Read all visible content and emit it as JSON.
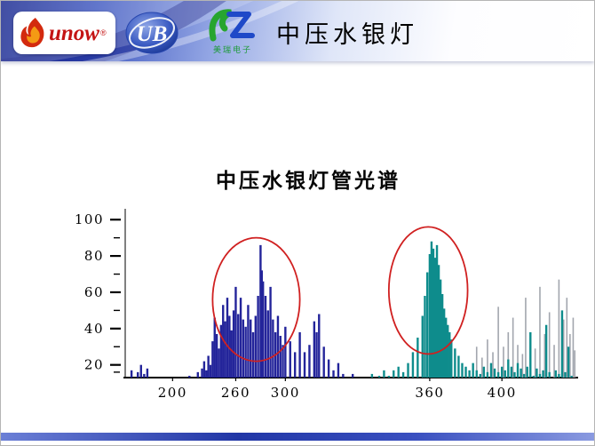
{
  "slide": {
    "title": "中压水银灯",
    "logos": {
      "sunow": {
        "text": "unow",
        "reg": "®"
      },
      "ub": {
        "text": "UB"
      },
      "meirui": {
        "caption": "美瑞电子"
      }
    }
  },
  "chart_data": {
    "type": "bar",
    "title": "中压水银灯管光谱",
    "xlabel": "",
    "ylabel": "",
    "xlim": [
      170,
      447
    ],
    "ylim": [
      13,
      105
    ],
    "x_ticks": [
      200,
      260,
      300,
      360,
      400
    ],
    "y_ticks_major": [
      20,
      40,
      60,
      80,
      100
    ],
    "y_ticks_minor": [
      16,
      30,
      50,
      70,
      90
    ],
    "grid": "off",
    "legend": "none",
    "series": [
      {
        "name": "gray-lines",
        "color": "#a2a6ae",
        "width": 1.6,
        "points": [
          [
            386,
            30
          ],
          [
            389,
            24
          ],
          [
            392,
            34
          ],
          [
            395,
            27
          ],
          [
            398,
            52
          ],
          [
            401,
            30
          ],
          [
            404,
            38
          ],
          [
            407,
            46
          ],
          [
            410,
            31
          ],
          [
            413,
            26
          ],
          [
            415,
            57
          ],
          [
            418,
            35
          ],
          [
            421,
            29
          ],
          [
            424,
            63
          ],
          [
            427,
            37
          ],
          [
            430,
            49
          ],
          [
            433,
            31
          ],
          [
            436,
            67
          ],
          [
            439,
            45
          ],
          [
            441,
            57
          ],
          [
            443,
            37
          ],
          [
            445,
            46
          ],
          [
            446,
            28
          ]
        ]
      },
      {
        "name": "uv-lines",
        "color": "#23249a",
        "width": 2.4,
        "points": [
          [
            170,
            9
          ],
          [
            172,
            13
          ],
          [
            174,
            17
          ],
          [
            176,
            12
          ],
          [
            178,
            16
          ],
          [
            180,
            20
          ],
          [
            182,
            15
          ],
          [
            184,
            18
          ],
          [
            186,
            12
          ],
          [
            188,
            9
          ],
          [
            190,
            13
          ],
          [
            192,
            10
          ],
          [
            194,
            12
          ],
          [
            196,
            9
          ],
          [
            198,
            11
          ],
          [
            200,
            10
          ],
          [
            202,
            8
          ],
          [
            204,
            11
          ],
          [
            206,
            9
          ],
          [
            208,
            12
          ],
          [
            210,
            10
          ],
          [
            212,
            8
          ],
          [
            214,
            12
          ],
          [
            216,
            14
          ],
          [
            218,
            11
          ],
          [
            220,
            13
          ],
          [
            222,
            10
          ],
          [
            224,
            16
          ],
          [
            226,
            13
          ],
          [
            228,
            18
          ],
          [
            230,
            22
          ],
          [
            232,
            17
          ],
          [
            234,
            25
          ],
          [
            236,
            20
          ],
          [
            238,
            33
          ],
          [
            240,
            46
          ],
          [
            242,
            37
          ],
          [
            244,
            29
          ],
          [
            246,
            42
          ],
          [
            248,
            53
          ],
          [
            250,
            44
          ],
          [
            252,
            57
          ],
          [
            254,
            47
          ],
          [
            256,
            39
          ],
          [
            258,
            50
          ],
          [
            260,
            63
          ],
          [
            262,
            48
          ],
          [
            264,
            57
          ],
          [
            266,
            45
          ],
          [
            268,
            41
          ],
          [
            270,
            53
          ],
          [
            272,
            45
          ],
          [
            274,
            38
          ],
          [
            276,
            47
          ],
          [
            278,
            58
          ],
          [
            280,
            86
          ],
          [
            281,
            72
          ],
          [
            282,
            66
          ],
          [
            284,
            58
          ],
          [
            286,
            50
          ],
          [
            288,
            63
          ],
          [
            290,
            45
          ],
          [
            292,
            38
          ],
          [
            294,
            47
          ],
          [
            296,
            36
          ],
          [
            298,
            31
          ],
          [
            300,
            41
          ],
          [
            302,
            33
          ],
          [
            304,
            27
          ],
          [
            306,
            38
          ],
          [
            308,
            27
          ],
          [
            310,
            31
          ],
          [
            312,
            44
          ],
          [
            313,
            38
          ],
          [
            314,
            48
          ],
          [
            316,
            30
          ],
          [
            318,
            23
          ],
          [
            320,
            17
          ],
          [
            322,
            21
          ],
          [
            324,
            15
          ],
          [
            326,
            13
          ],
          [
            328,
            15
          ],
          [
            330,
            12
          ],
          [
            332,
            10
          ]
        ]
      },
      {
        "name": "visible-lines",
        "color": "#0e8c8c",
        "width": 2.4,
        "points": [
          [
            334,
            12
          ],
          [
            336,
            15
          ],
          [
            337,
            12
          ],
          [
            339,
            14
          ],
          [
            341,
            17
          ],
          [
            343,
            14
          ],
          [
            345,
            17
          ],
          [
            347,
            19
          ],
          [
            349,
            16
          ],
          [
            351,
            21
          ],
          [
            353,
            27
          ],
          [
            355,
            35
          ],
          [
            357,
            47
          ],
          [
            358,
            58
          ],
          [
            359,
            71
          ],
          [
            360,
            81
          ],
          [
            361,
            88
          ],
          [
            362,
            84
          ],
          [
            363,
            79
          ],
          [
            364,
            86
          ],
          [
            365,
            75
          ],
          [
            366,
            67
          ],
          [
            367,
            59
          ],
          [
            368,
            51
          ],
          [
            369,
            46
          ],
          [
            370,
            42
          ],
          [
            371,
            38
          ],
          [
            372,
            34
          ],
          [
            374,
            29
          ],
          [
            376,
            25
          ],
          [
            378,
            21
          ],
          [
            380,
            19
          ],
          [
            382,
            17
          ],
          [
            384,
            21
          ],
          [
            386,
            17
          ],
          [
            388,
            15
          ],
          [
            390,
            19
          ],
          [
            392,
            16
          ],
          [
            394,
            21
          ],
          [
            396,
            18
          ],
          [
            398,
            16
          ],
          [
            400,
            19
          ],
          [
            402,
            17
          ],
          [
            404,
            23
          ],
          [
            406,
            19
          ],
          [
            408,
            16
          ],
          [
            410,
            21
          ],
          [
            412,
            18
          ],
          [
            414,
            15
          ],
          [
            416,
            19
          ],
          [
            418,
            38
          ],
          [
            420,
            14
          ],
          [
            422,
            18
          ],
          [
            424,
            15
          ],
          [
            426,
            17
          ],
          [
            428,
            42
          ],
          [
            430,
            16
          ],
          [
            432,
            13
          ],
          [
            434,
            17
          ],
          [
            436,
            15
          ],
          [
            438,
            50
          ],
          [
            440,
            16
          ],
          [
            442,
            30
          ],
          [
            444,
            14
          ]
        ]
      }
    ],
    "annotations": [
      {
        "type": "ellipse",
        "cx": 272,
        "cy": 56,
        "rx": 34,
        "ry": 34,
        "color": "#d02020"
      },
      {
        "type": "ellipse",
        "cx": 362,
        "cy": 61,
        "rx": 19,
        "ry": 35,
        "color": "#d02020"
      }
    ]
  }
}
